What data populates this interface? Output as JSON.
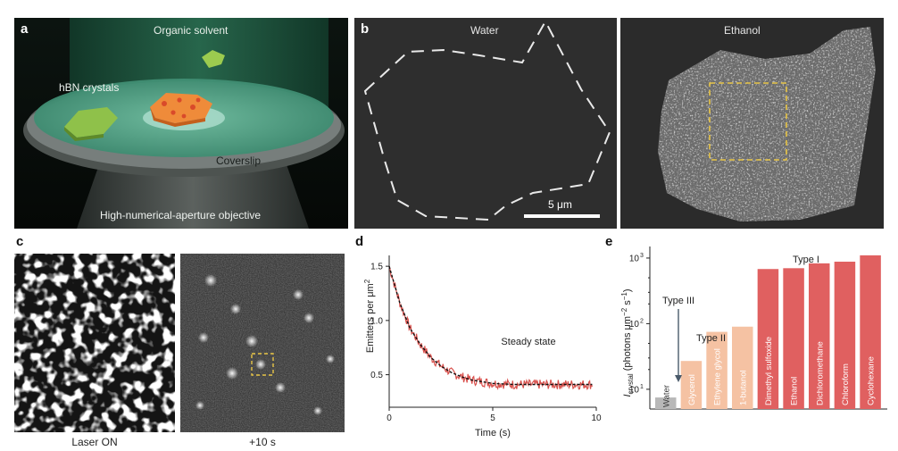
{
  "panel_a": {
    "letter": "a",
    "labels": {
      "solvent": "Organic solvent",
      "crystals": "hBN crystals",
      "coverslip": "Coverslip",
      "objective": "High-numerical-aperture objective"
    }
  },
  "panel_b": {
    "letter": "b",
    "left_title": "Water",
    "right_title": "Ethanol",
    "scalebar": "5 μm"
  },
  "panel_c": {
    "letter": "c",
    "left_caption": "Laser ON",
    "right_caption": "+10 s"
  },
  "colors": {
    "series": "#d9534f",
    "fit": "#111111",
    "water_bar": "#b8b8b8",
    "type2_bar": "#f5c2a3",
    "type1_bar": "#e06060",
    "highlight_box": "#e8c547"
  },
  "chart_data": [
    {
      "id": "d",
      "letter": "d",
      "type": "line",
      "xlabel": "Time (s)",
      "ylabel": "Emitters per μm",
      "ylabel_sup": "2",
      "xlim": [
        0,
        10
      ],
      "ylim": [
        0.2,
        1.6
      ],
      "xticks": [
        0,
        5,
        10
      ],
      "yticks": [
        0.5,
        1.0,
        1.5
      ],
      "ytick_labels": [
        "0.5",
        "1.0",
        "1.5"
      ],
      "annotation": "Steady state",
      "series": [
        {
          "x": [
            0,
            0.5,
            1,
            1.5,
            2,
            2.5,
            3,
            3.5,
            4,
            5,
            6,
            7,
            8,
            9,
            9.8
          ],
          "y": [
            1.5,
            1.17,
            0.93,
            0.78,
            0.66,
            0.58,
            0.52,
            0.48,
            0.45,
            0.42,
            0.41,
            0.41,
            0.41,
            0.41,
            0.41
          ]
        }
      ]
    },
    {
      "id": "e",
      "letter": "e",
      "type": "bar",
      "yscale": "log",
      "ylim": [
        5,
        1500
      ],
      "yticks": [
        10,
        100,
        1000
      ],
      "ytick_labels": [
        "10",
        "10",
        "10"
      ],
      "ytick_sups": [
        "1",
        "2",
        "3"
      ],
      "ylabel_i": "I",
      "ylabel_sub": "crystal",
      "ylabel_main": " (photons μm",
      "ylabel_sup1": "−2",
      "ylabel_mid": " s",
      "ylabel_sup2": "−1",
      "ylabel_end": ")",
      "categories": [
        "Water",
        "Glycerol",
        "Ethylene  glycol",
        "1-butanol",
        "Dimethyl sulfoxide",
        "Ethanol",
        "Dichloromethane",
        "Chloroform",
        "Cyclohexane"
      ],
      "values": [
        7.5,
        27,
        75,
        90,
        680,
        700,
        830,
        880,
        1100
      ],
      "groups": [
        "water",
        "type2",
        "type2",
        "type2",
        "type1",
        "type1",
        "type1",
        "type1",
        "type1"
      ],
      "annotations": [
        "Type III",
        "Type II",
        "Type I"
      ]
    }
  ]
}
